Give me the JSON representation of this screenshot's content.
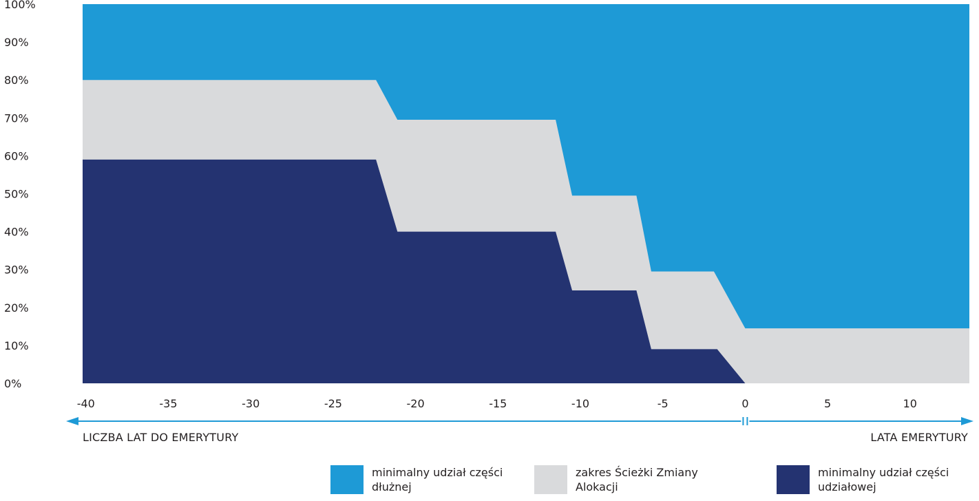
{
  "chart_data": {
    "type": "area",
    "x_ticks": [
      "-40",
      "-35",
      "-30",
      "-25",
      "-20",
      "-15",
      "-10",
      "-5",
      "0",
      "5",
      "10"
    ],
    "y_ticks": [
      "0%",
      "10%",
      "20%",
      "30%",
      "40%",
      "50%",
      "60%",
      "70%",
      "80%",
      "90%",
      "100%"
    ],
    "xlim": [
      -40.2,
      13.6
    ],
    "ylim": [
      0,
      100
    ],
    "colors": {
      "debt": "#1e9ad6",
      "range": "#d9dadc",
      "equity": "#243371",
      "axis": "#1e9ad6"
    },
    "series": [
      {
        "name": "minimalny udział części udziałowej",
        "color_key": "equity",
        "points": [
          [
            -40.2,
            59
          ],
          [
            -22.4,
            59
          ],
          [
            -21.1,
            40
          ],
          [
            -11.5,
            40
          ],
          [
            -10.5,
            24.5
          ],
          [
            -6.6,
            24.5
          ],
          [
            -5.7,
            9
          ],
          [
            -1.7,
            9
          ],
          [
            0,
            0
          ]
        ]
      },
      {
        "name": "zakres Ścieżki Zmiany Alokacji",
        "color_key": "range",
        "points": [
          [
            -40.2,
            80
          ],
          [
            -22.4,
            80
          ],
          [
            -21.1,
            69.5
          ],
          [
            -11.5,
            69.5
          ],
          [
            -10.5,
            49.5
          ],
          [
            -6.6,
            49.5
          ],
          [
            -5.7,
            29.5
          ],
          [
            -1.9,
            29.5
          ],
          [
            0,
            14.5
          ],
          [
            13.6,
            14.5
          ]
        ]
      },
      {
        "name": "minimalny udział części dłużnej",
        "color_key": "debt",
        "top": 100
      }
    ],
    "x_axis_left_label": "LICZBA LAT DO EMERYTURY",
    "x_axis_right_label": "LATA EMERYTURY",
    "legend_position": "bottom-right"
  },
  "legend": [
    {
      "label": "minimalny udział części dłużnej",
      "color_key": "debt"
    },
    {
      "label": "zakres Ścieżki Zmiany Alokacji",
      "color_key": "range"
    },
    {
      "label": "minimalny udział części udziałowej",
      "color_key": "equity"
    }
  ]
}
